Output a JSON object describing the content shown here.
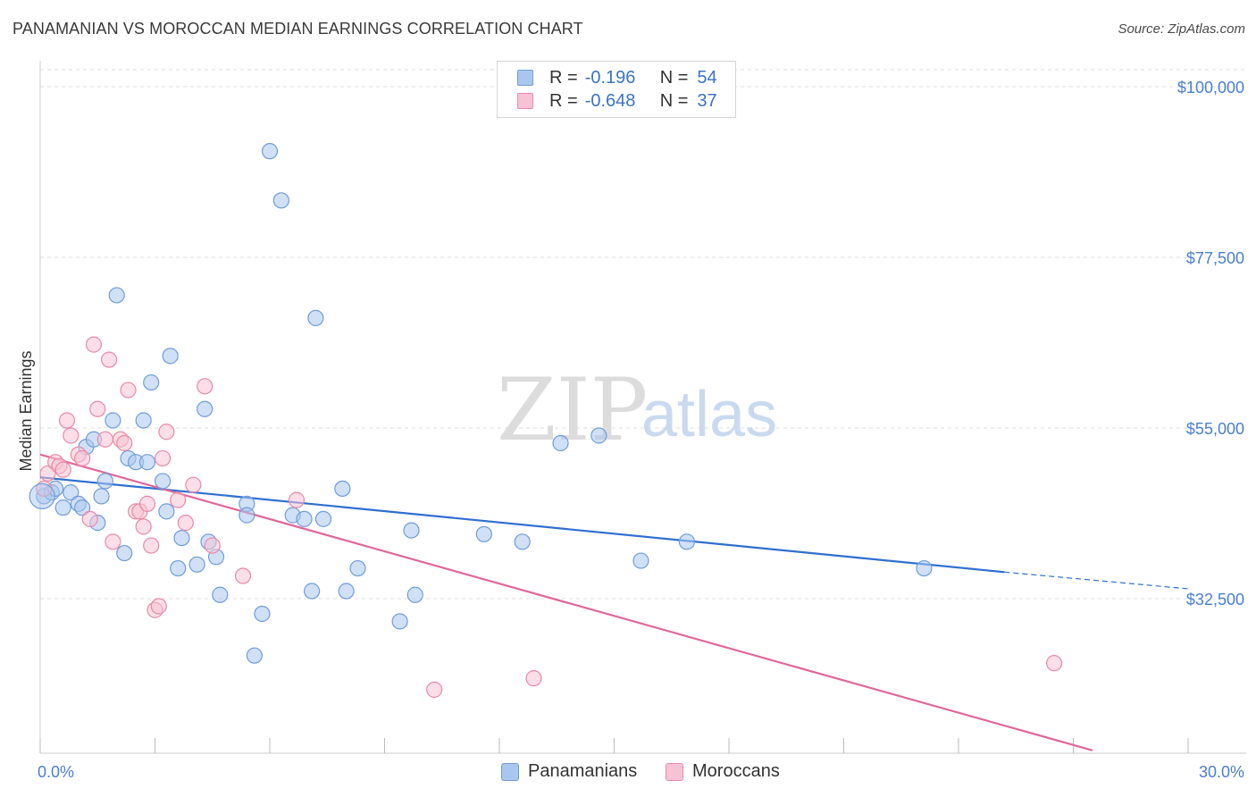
{
  "title": "PANAMANIAN VS MOROCCAN MEDIAN EARNINGS CORRELATION CHART",
  "source": "Source: ZipAtlas.com",
  "watermark": {
    "zip": "ZIP",
    "atlas": "atlas"
  },
  "legend": {
    "rows": [
      {
        "r_label": "R =",
        "r_value": "-0.196",
        "n_label": "N =",
        "n_value": "54",
        "color": "#a9c7ee",
        "border": "#6f9ddb"
      },
      {
        "r_label": "R =",
        "r_value": "-0.648",
        "n_label": "N =",
        "n_value": "37",
        "color": "#f7c2d3",
        "border": "#e98aa9"
      }
    ]
  },
  "bottom_legend": [
    {
      "label": "Panamanians",
      "color": "#a9c7ee",
      "border": "#6f9ddb"
    },
    {
      "label": "Moroccans",
      "color": "#f7c2d3",
      "border": "#e98aa9"
    }
  ],
  "chart_data": {
    "type": "scatter",
    "title": "PANAMANIAN VS MOROCCAN MEDIAN EARNINGS CORRELATION CHART",
    "xlabel": "",
    "ylabel": "Median Earnings",
    "xlim": [
      0,
      30
    ],
    "ylim": [
      13000,
      102000
    ],
    "x_tick_labels": [
      "0.0%",
      "30.0%"
    ],
    "y_ticks": [
      {
        "value": 100000,
        "label": "$100,000"
      },
      {
        "value": 77500,
        "label": "$77,500"
      },
      {
        "value": 55000,
        "label": "$55,000"
      },
      {
        "value": 32500,
        "label": "$32,500"
      }
    ],
    "series": [
      {
        "name": "Panamanians",
        "color": "#6f9ddb",
        "fill": "#a9c7ee",
        "points": [
          [
            0.1,
            46000
          ],
          [
            0.3,
            46500
          ],
          [
            0.4,
            47000
          ],
          [
            0.6,
            44500
          ],
          [
            0.8,
            46500
          ],
          [
            1.0,
            45000
          ],
          [
            1.1,
            44500
          ],
          [
            1.2,
            52500
          ],
          [
            1.4,
            53500
          ],
          [
            1.5,
            42500
          ],
          [
            1.6,
            46000
          ],
          [
            1.7,
            48000
          ],
          [
            1.9,
            56000
          ],
          [
            2.0,
            72500
          ],
          [
            2.2,
            38500
          ],
          [
            2.3,
            51000
          ],
          [
            2.5,
            50500
          ],
          [
            2.7,
            56000
          ],
          [
            2.8,
            50500
          ],
          [
            2.9,
            61000
          ],
          [
            3.2,
            48000
          ],
          [
            3.3,
            44000
          ],
          [
            3.4,
            64500
          ],
          [
            3.6,
            36500
          ],
          [
            3.7,
            40500
          ],
          [
            4.1,
            37000
          ],
          [
            4.3,
            57500
          ],
          [
            4.4,
            40000
          ],
          [
            4.6,
            38000
          ],
          [
            4.7,
            33000
          ],
          [
            5.4,
            45000
          ],
          [
            5.4,
            43500
          ],
          [
            5.6,
            25000
          ],
          [
            5.8,
            30500
          ],
          [
            6.0,
            91500
          ],
          [
            6.3,
            85000
          ],
          [
            6.6,
            43500
          ],
          [
            6.9,
            43000
          ],
          [
            7.1,
            33500
          ],
          [
            7.2,
            69500
          ],
          [
            7.4,
            43000
          ],
          [
            7.9,
            47000
          ],
          [
            8.0,
            33500
          ],
          [
            8.3,
            36500
          ],
          [
            9.4,
            29500
          ],
          [
            9.7,
            41500
          ],
          [
            9.8,
            33000
          ],
          [
            11.6,
            41000
          ],
          [
            12.6,
            40000
          ],
          [
            13.6,
            53000
          ],
          [
            14.6,
            54000
          ],
          [
            15.7,
            37500
          ],
          [
            16.9,
            40000
          ],
          [
            23.1,
            36500
          ]
        ],
        "trend": {
          "x0": 0,
          "y0": 48500,
          "x1": 25.2,
          "y1": 36000,
          "dash_to_x": 30,
          "dash_to_y": 33800
        }
      },
      {
        "name": "Moroccans",
        "color": "#e98aa9",
        "fill": "#f7c2d3",
        "points": [
          [
            0.1,
            47000
          ],
          [
            0.2,
            49000
          ],
          [
            0.4,
            50500
          ],
          [
            0.5,
            50000
          ],
          [
            0.6,
            49500
          ],
          [
            0.7,
            56000
          ],
          [
            0.8,
            54000
          ],
          [
            1.0,
            51500
          ],
          [
            1.1,
            51000
          ],
          [
            1.3,
            43000
          ],
          [
            1.4,
            66000
          ],
          [
            1.5,
            57500
          ],
          [
            1.7,
            53500
          ],
          [
            1.8,
            64000
          ],
          [
            1.9,
            40000
          ],
          [
            2.1,
            53500
          ],
          [
            2.2,
            53000
          ],
          [
            2.3,
            60000
          ],
          [
            2.5,
            44000
          ],
          [
            2.6,
            44000
          ],
          [
            2.7,
            42000
          ],
          [
            2.8,
            45000
          ],
          [
            2.9,
            39500
          ],
          [
            3.0,
            31000
          ],
          [
            3.1,
            31500
          ],
          [
            3.2,
            51000
          ],
          [
            3.3,
            54500
          ],
          [
            3.6,
            45500
          ],
          [
            3.8,
            42500
          ],
          [
            4.0,
            47500
          ],
          [
            4.3,
            60500
          ],
          [
            4.5,
            39500
          ],
          [
            5.3,
            35500
          ],
          [
            6.7,
            45500
          ],
          [
            10.3,
            20500
          ],
          [
            12.9,
            22000
          ],
          [
            26.5,
            24000
          ]
        ],
        "trend": {
          "x0": 0,
          "y0": 51500,
          "x1": 27.5,
          "y1": 12500
        }
      }
    ]
  }
}
